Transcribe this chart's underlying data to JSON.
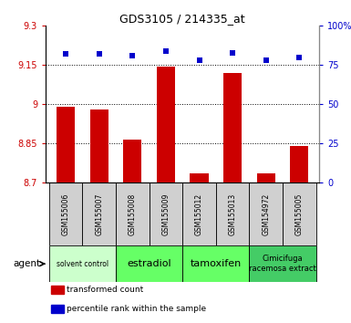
{
  "title": "GDS3105 / 214335_at",
  "samples": [
    "GSM155006",
    "GSM155007",
    "GSM155008",
    "GSM155009",
    "GSM155012",
    "GSM155013",
    "GSM154972",
    "GSM155005"
  ],
  "bar_values": [
    8.99,
    8.98,
    8.865,
    9.145,
    8.735,
    9.12,
    8.735,
    8.84
  ],
  "scatter_values": [
    82,
    82,
    81,
    84,
    78,
    83,
    78,
    80
  ],
  "ylim_left": [
    8.7,
    9.3
  ],
  "ylim_right": [
    0,
    100
  ],
  "yticks_left": [
    8.7,
    8.85,
    9.0,
    9.15,
    9.3
  ],
  "ytick_labels_left": [
    "8.7",
    "8.85",
    "9",
    "9.15",
    "9.3"
  ],
  "yticks_right": [
    0,
    25,
    50,
    75,
    100
  ],
  "ytick_labels_right": [
    "0",
    "25",
    "50",
    "75",
    "100%"
  ],
  "bar_color": "#cc0000",
  "scatter_color": "#0000cc",
  "bar_baseline": 8.7,
  "agents": [
    {
      "label": "solvent control",
      "start": 0,
      "end": 2,
      "color": "#ccffcc",
      "fontsize": 5.5
    },
    {
      "label": "estradiol",
      "start": 2,
      "end": 4,
      "color": "#66ff66",
      "fontsize": 8
    },
    {
      "label": "tamoxifen",
      "start": 4,
      "end": 6,
      "color": "#66ff66",
      "fontsize": 8
    },
    {
      "label": "Cimicifuga\nracemosa extract",
      "start": 6,
      "end": 8,
      "color": "#44cc66",
      "fontsize": 6
    }
  ],
  "legend_items": [
    {
      "label": "transformed count",
      "color": "#cc0000"
    },
    {
      "label": "percentile rank within the sample",
      "color": "#0000cc"
    }
  ],
  "tick_color_left": "#cc0000",
  "tick_color_right": "#0000cc",
  "agent_label": "agent",
  "bar_width": 0.55,
  "sample_box_color": "#d0d0d0",
  "spine_color": "#000000"
}
